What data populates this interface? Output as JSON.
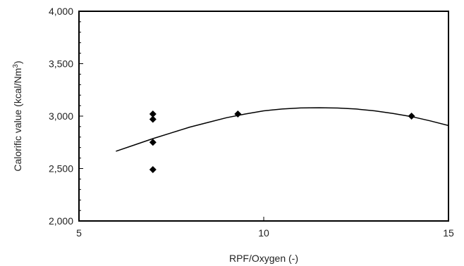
{
  "chart_data": {
    "type": "scatter",
    "title": "",
    "xlabel": "RPF/Oxygen (-)",
    "ylabel_main": "Calorific value (kcal/Nm",
    "ylabel_sup": "3",
    "ylabel_tail": ")",
    "xlim": [
      5,
      15
    ],
    "ylim": [
      2000,
      4000
    ],
    "x_ticks": [
      5,
      10,
      15
    ],
    "x_tick_labels": [
      "5",
      "10",
      "15"
    ],
    "y_ticks": [
      2000,
      2500,
      3000,
      3500,
      4000
    ],
    "y_tick_labels": [
      "2,000",
      "2,500",
      "3,000",
      "3,500",
      "4,000"
    ],
    "grid": false,
    "legend": "none",
    "series": [
      {
        "type": "scatter",
        "marker": "diamond",
        "color": "#000000",
        "points": [
          {
            "x": 7.0,
            "y": 3020
          },
          {
            "x": 7.0,
            "y": 2970
          },
          {
            "x": 7.0,
            "y": 2750
          },
          {
            "x": 7.0,
            "y": 2490
          },
          {
            "x": 9.3,
            "y": 3020
          },
          {
            "x": 14.0,
            "y": 3000
          }
        ]
      },
      {
        "type": "line",
        "color": "#000000",
        "x": [
          6.0,
          6.5,
          7.0,
          7.5,
          8.0,
          8.5,
          9.0,
          9.5,
          10.0,
          10.5,
          11.0,
          11.5,
          12.0,
          12.5,
          13.0,
          13.5,
          14.0,
          14.5,
          15.0
        ],
        "y": [
          2665,
          2725,
          2785,
          2840,
          2895,
          2940,
          2985,
          3020,
          3050,
          3068,
          3078,
          3080,
          3077,
          3068,
          3050,
          3025,
          2995,
          2955,
          2910
        ]
      }
    ]
  }
}
